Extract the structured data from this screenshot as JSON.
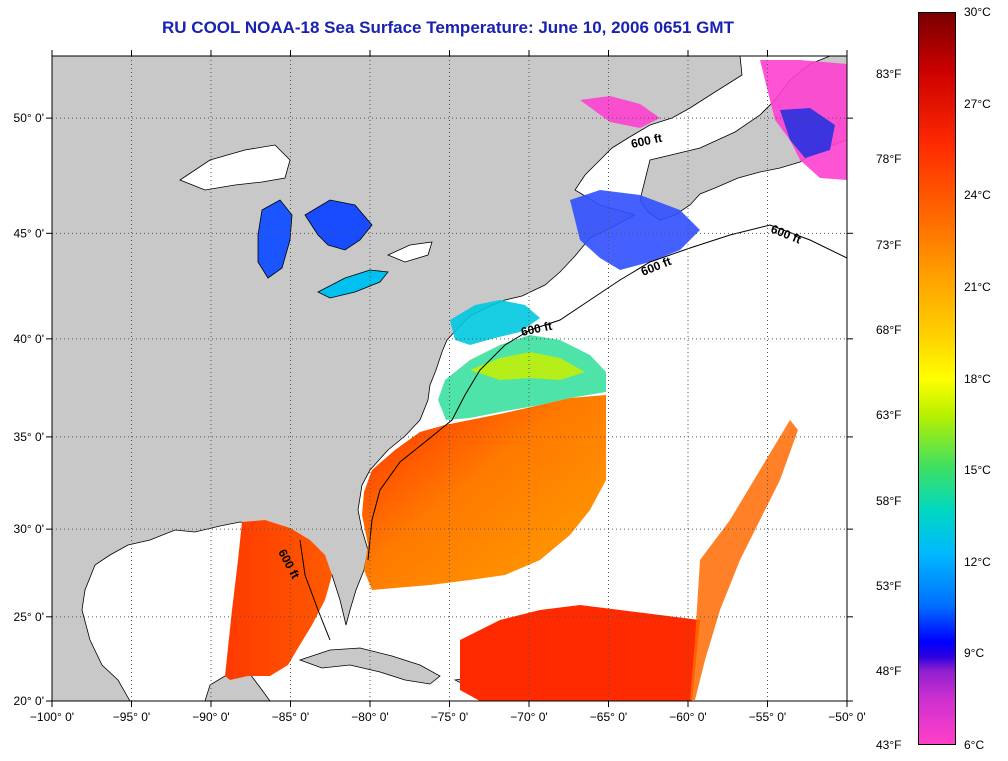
{
  "title": "RU COOL  NOAA-18  Sea Surface Temperature:  June 10, 2006 0651 GMT",
  "map": {
    "lon_range": [
      -100,
      -50
    ],
    "lat_range": [
      20,
      52.5
    ],
    "lon_labels": [
      "−100° 0'",
      "−95° 0'",
      "−90° 0'",
      "−85° 0'",
      "−80° 0'",
      "−75° 0'",
      "−70° 0'",
      "−65° 0'",
      "−60° 0'",
      "−55° 0'",
      "−50° 0'"
    ],
    "lat_labels": [
      "20° 0'",
      "25° 0'",
      "30° 0'",
      "35° 0'",
      "40° 0'",
      "45° 0'",
      "50° 0'"
    ],
    "isobath_label": "600 ft",
    "colors": {
      "land": "#c8c8c8",
      "no_data": "#ffffff",
      "warm": "#ff3000",
      "cool": "#1a40ff",
      "grid": "#555555"
    }
  },
  "colorbar": {
    "celsius": [
      "30°C",
      "27°C",
      "24°C",
      "21°C",
      "18°C",
      "15°C",
      "12°C",
      "9°C",
      "6°C"
    ],
    "fahrenheit": [
      "83°F",
      "78°F",
      "73°F",
      "68°F",
      "63°F",
      "58°F",
      "53°F",
      "48°F",
      "43°F"
    ]
  }
}
